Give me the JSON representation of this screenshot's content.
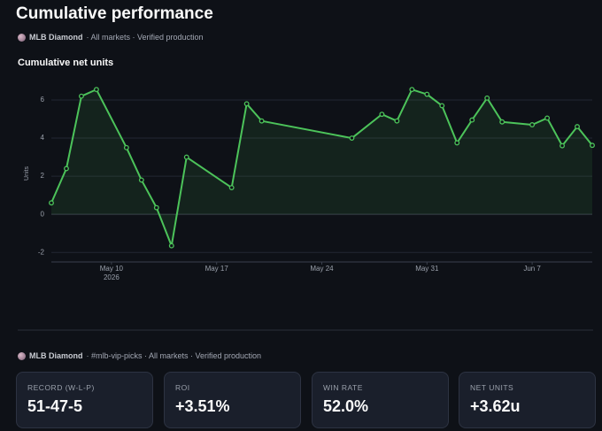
{
  "header": {
    "title": "Cumulative performance",
    "source": "MLB Diamond",
    "meta": "· All markets · Verified production"
  },
  "chart_data": {
    "type": "line",
    "title": "Cumulative net units",
    "y_label": "Units",
    "color": "#4cc35a",
    "grid": true,
    "x": [
      "2026-05-06",
      "2026-05-07",
      "2026-05-08",
      "2026-05-09",
      "2026-05-11",
      "2026-05-12",
      "2026-05-13",
      "2026-05-14",
      "2026-05-15",
      "2026-05-18",
      "2026-05-19",
      "2026-05-20",
      "2026-05-26",
      "2026-05-28",
      "2026-05-29",
      "2026-05-30",
      "2026-05-31",
      "2026-06-01",
      "2026-06-02",
      "2026-06-03",
      "2026-06-04",
      "2026-06-05",
      "2026-06-07",
      "2026-06-08",
      "2026-06-09",
      "2026-06-10",
      "2026-06-11"
    ],
    "values": [
      0.6,
      2.4,
      6.2,
      6.55,
      3.5,
      1.8,
      0.35,
      -1.65,
      3.0,
      1.4,
      5.8,
      4.9,
      4.0,
      5.25,
      4.9,
      6.55,
      6.3,
      5.7,
      3.75,
      4.95,
      6.1,
      4.85,
      4.7,
      5.05,
      3.6,
      4.6,
      3.62
    ],
    "xlim": [
      "2026-05-06",
      "2026-06-11"
    ],
    "xticks": [
      {
        "value": "2026-05-10",
        "label": "May 10"
      },
      {
        "value": "2026-05-17",
        "label": "May 17"
      },
      {
        "value": "2026-05-24",
        "label": "May 24"
      },
      {
        "value": "2026-05-31",
        "label": "May 31"
      },
      {
        "value": "2026-06-07",
        "label": "Jun 7"
      }
    ],
    "year_label": "2026",
    "ylim": [
      -2.5,
      7.3
    ],
    "yticks": [
      -2,
      0,
      2,
      4,
      6
    ]
  },
  "footer": {
    "source": "MLB Diamond",
    "meta": "· #mlb-vip-picks · All markets · Verified production"
  },
  "stats": [
    {
      "label": "RECORD (W-L-P)",
      "value": "51-47-5"
    },
    {
      "label": "ROI",
      "value": "+3.51%"
    },
    {
      "label": "WIN RATE",
      "value": "52.0%"
    },
    {
      "label": "NET UNITS",
      "value": "+3.62u"
    }
  ]
}
